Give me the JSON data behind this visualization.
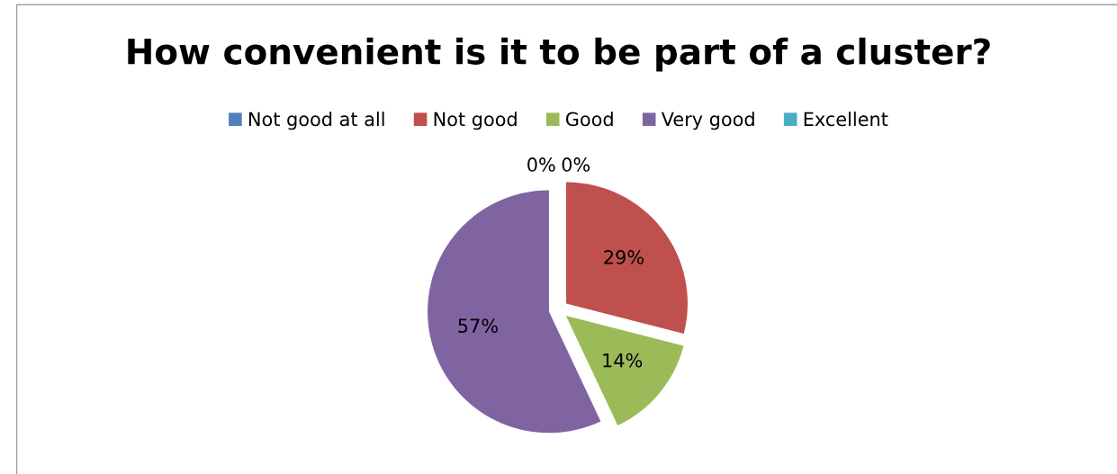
{
  "chart_data": {
    "type": "pie",
    "title": "How convenient is it to be part of a cluster?",
    "categories": [
      "Not good at all",
      "Not good",
      "Good",
      "Very good",
      "Excellent"
    ],
    "values": [
      0,
      29,
      14,
      57,
      0
    ],
    "colors": [
      "#4f81bd",
      "#c0504d",
      "#9bbb59",
      "#8064a2",
      "#4bacc6"
    ],
    "value_labels": [
      "0%",
      "29%",
      "14%",
      "57%",
      "0%"
    ],
    "legend": "top"
  }
}
